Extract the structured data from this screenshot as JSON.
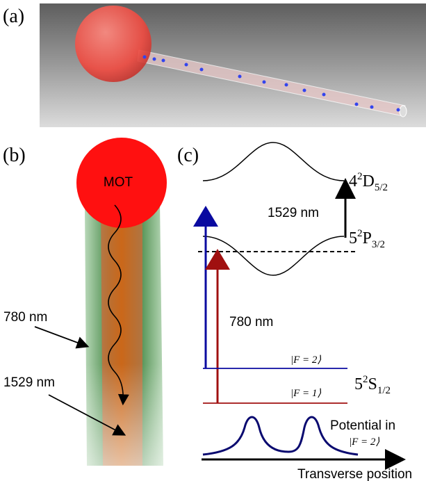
{
  "panels": {
    "a": {
      "label": "(a)"
    },
    "b": {
      "label": "(b)",
      "cloud": "MOT",
      "beam1": "780 nm",
      "beam2": "1529 nm"
    },
    "c": {
      "label": "(c)",
      "levels": [
        {
          "n": "4",
          "sup": "2",
          "letter": "D",
          "sub": "5/2"
        },
        {
          "n": "5",
          "sup": "2",
          "letter": "P",
          "sub": "3/2"
        },
        {
          "n": "5",
          "sup": "2",
          "letter": "S",
          "sub": "1/2"
        }
      ],
      "transition_upper": "1529 nm",
      "transition_lower": "780 nm",
      "states": [
        "|F = 2⟩",
        "|F = 1⟩"
      ],
      "potential_label": "Potential in",
      "potential_state": "|F = 2⟩",
      "x_axis": "Transverse position"
    }
  }
}
